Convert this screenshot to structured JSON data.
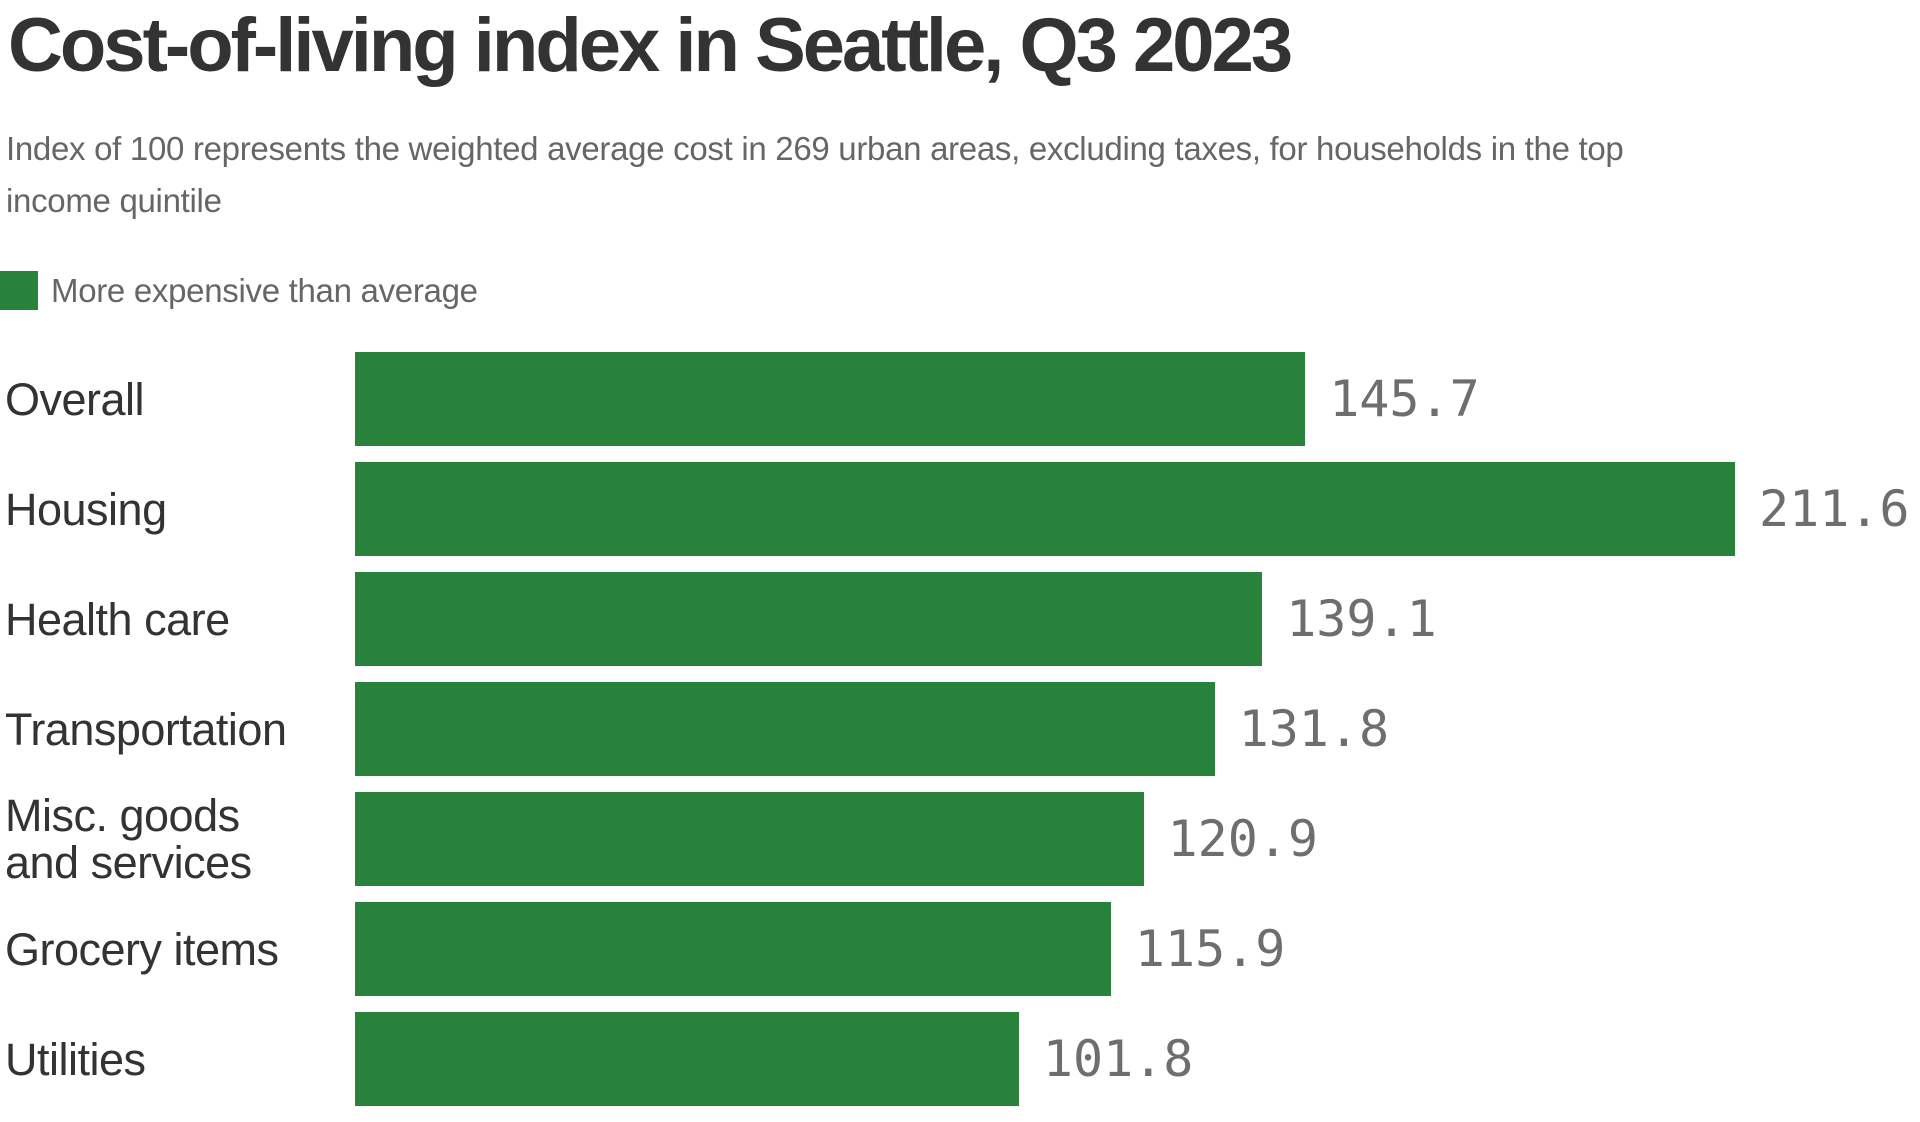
{
  "title": "Cost-of-living index in Seattle, Q3 2023",
  "subtitle_lines": [
    "Index of 100 represents the weighted average cost in 269 urban areas, excluding taxes, for households in the top",
    "income quintile"
  ],
  "legend": {
    "label": "More expensive than average"
  },
  "colors": {
    "bar_green": "#28823B",
    "title_text": "#333333",
    "category_text": "#333333",
    "muted_text": "#666666",
    "value_text": "#6E6E6E",
    "background": "#FFFFFF"
  },
  "chart_data": {
    "type": "bar",
    "orientation": "horizontal",
    "title": "Cost-of-living index in Seattle, Q3 2023",
    "subtitle": "Index of 100 represents the weighted average cost in 269 urban areas, excluding taxes, for households in the top income quintile",
    "categories": [
      "Overall",
      "Housing",
      "Health care",
      "Transportation",
      "Misc. goods and services",
      "Grocery items",
      "Utilities"
    ],
    "category_display_lines": [
      [
        "Overall"
      ],
      [
        "Housing"
      ],
      [
        "Health care"
      ],
      [
        "Transportation"
      ],
      [
        "Misc. goods",
        "and services"
      ],
      [
        "Grocery items"
      ],
      [
        "Utilities"
      ]
    ],
    "values": [
      145.7,
      211.6,
      139.1,
      131.8,
      120.9,
      115.9,
      101.8
    ],
    "value_labels": [
      "145.7",
      "211.6",
      "139.1",
      "131.8",
      "120.9",
      "115.9",
      "101.8"
    ],
    "xlim": [
      0,
      211.6
    ],
    "grid": false,
    "legend_entries": [
      "More expensive than average"
    ],
    "value_label_position": "right-of-bar",
    "bar_color": "#28823B"
  }
}
